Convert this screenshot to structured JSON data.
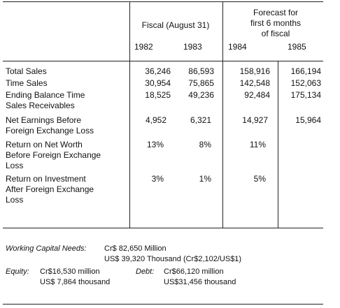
{
  "header": {
    "fiscal_title": "Fiscal (August 31)",
    "forecast_title_lines": [
      "Forecast for",
      "first 6 months",
      "of fiscal"
    ],
    "years": [
      "1982",
      "1983",
      "1984",
      "1985"
    ]
  },
  "rows": [
    {
      "label_lines": [
        "Total Sales"
      ],
      "values": [
        "36,246",
        "86,593",
        "158,916",
        "166,194"
      ]
    },
    {
      "label_lines": [
        "Time Sales"
      ],
      "values": [
        "30,954",
        "75,865",
        "142,548",
        "152,063"
      ]
    },
    {
      "label_lines": [
        "Ending Balance Time",
        "Sales Receivables"
      ],
      "values": [
        "18,525",
        "49,236",
        "92,484",
        "175,134"
      ]
    },
    {
      "label_lines": [
        "Net Earnings Before",
        "Foreign Exchange Loss"
      ],
      "values": [
        "4,952",
        "6,321",
        "14,927",
        "15,964"
      ]
    },
    {
      "label_lines": [
        "Return on Net Worth",
        "Before Foreign Exchange",
        "Loss"
      ],
      "values": [
        "13%",
        "8%",
        "11%",
        ""
      ]
    },
    {
      "label_lines": [
        "Return on Investment",
        "After Foreign Exchange",
        "Loss"
      ],
      "values": [
        "3%",
        "1%",
        "5%",
        ""
      ]
    }
  ],
  "footer": {
    "working_capital_label": "Working Capital Needs:",
    "working_capital_value1": "Cr$ 82,650 Million",
    "working_capital_value2": "US$ 39,320 Thousand (Cr$2,102/US$1)",
    "equity_label": "Equity:",
    "equity_value1": "Cr$16,530 million",
    "equity_value2": "US$ 7,864 thousand",
    "debt_label": "Debt:",
    "debt_value1": "Cr$66,120 million",
    "debt_value2": "US$31,456 thousand"
  }
}
